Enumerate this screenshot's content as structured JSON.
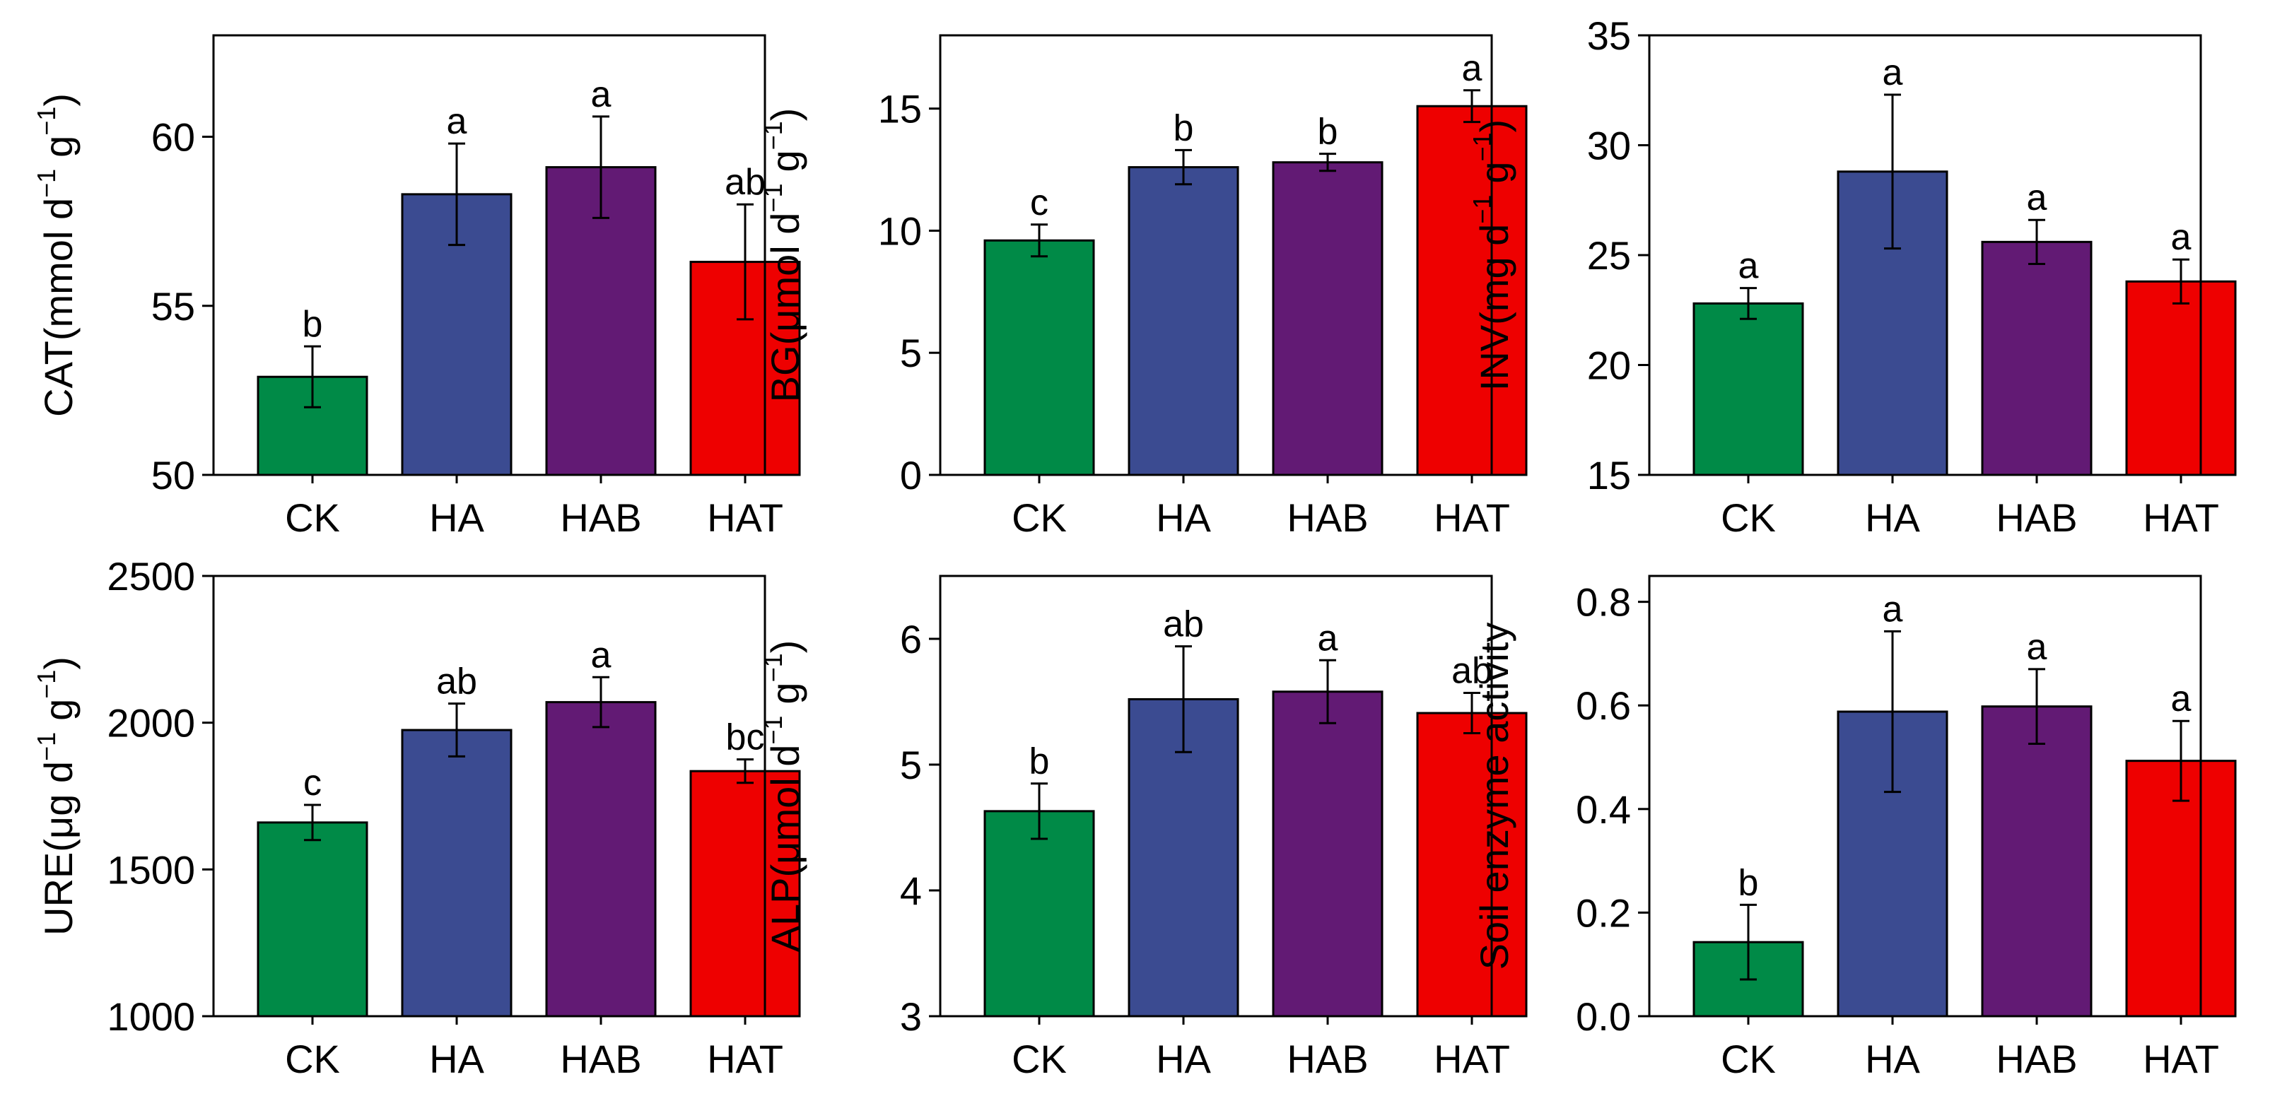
{
  "categories": [
    "CK",
    "HA",
    "HAB",
    "HAT"
  ],
  "colors": {
    "CK": "#008a47",
    "HA": "#3b4b91",
    "HAB": "#621a74",
    "HAT": "#ee0000",
    "axis": "#000000",
    "error_bar": "#000000"
  },
  "chart_data": [
    {
      "type": "bar",
      "ylabel_main": "CAT(mmol d",
      "ylabel_unit": "g",
      "ylabel_exp": "−1",
      "ylim": [
        50,
        63
      ],
      "yticks": [
        50,
        55,
        60
      ],
      "categories": [
        "CK",
        "HA",
        "HAB",
        "HAT"
      ],
      "values": [
        52.9,
        58.3,
        59.1,
        56.3
      ],
      "errors": [
        0.9,
        1.5,
        1.5,
        1.7
      ],
      "significance": [
        "b",
        "a",
        "a",
        "ab"
      ]
    },
    {
      "type": "bar",
      "ylabel_main": "BG(μmol d",
      "ylabel_unit": "g",
      "ylabel_exp": "−1",
      "ylim": [
        0,
        18
      ],
      "yticks": [
        0,
        5,
        10,
        15
      ],
      "categories": [
        "CK",
        "HA",
        "HAB",
        "HAT"
      ],
      "values": [
        9.6,
        12.6,
        12.8,
        15.1
      ],
      "errors": [
        0.65,
        0.7,
        0.35,
        0.65
      ],
      "significance": [
        "c",
        "b",
        "b",
        "a"
      ]
    },
    {
      "type": "bar",
      "ylabel_main": "INV(mg d",
      "ylabel_unit": "g",
      "ylabel_exp": "−1",
      "ylim": [
        15,
        35
      ],
      "yticks": [
        15,
        20,
        25,
        30,
        35
      ],
      "categories": [
        "CK",
        "HA",
        "HAB",
        "HAT"
      ],
      "values": [
        22.8,
        28.8,
        25.6,
        23.8
      ],
      "errors": [
        0.7,
        3.5,
        1.0,
        1.0
      ],
      "significance": [
        "a",
        "a",
        "a",
        "a"
      ]
    },
    {
      "type": "bar",
      "ylabel_main": "URE(μg d",
      "ylabel_unit": "g",
      "ylabel_exp": "−1",
      "ylim": [
        1000,
        2500
      ],
      "yticks": [
        1000,
        1500,
        2000,
        2500
      ],
      "categories": [
        "CK",
        "HA",
        "HAB",
        "HAT"
      ],
      "values": [
        1660,
        1975,
        2070,
        1835
      ],
      "errors": [
        60,
        90,
        85,
        40
      ],
      "significance": [
        "c",
        "ab",
        "a",
        "bc"
      ]
    },
    {
      "type": "bar",
      "ylabel_main": "ALP(μmol d",
      "ylabel_unit": "g",
      "ylabel_exp": "−1",
      "ylim": [
        3,
        6.5
      ],
      "yticks": [
        3,
        4,
        5,
        6
      ],
      "categories": [
        "CK",
        "HA",
        "HAB",
        "HAT"
      ],
      "values": [
        4.63,
        5.52,
        5.58,
        5.41
      ],
      "errors": [
        0.22,
        0.42,
        0.25,
        0.16
      ],
      "significance": [
        "b",
        "ab",
        "a",
        "ab"
      ]
    },
    {
      "type": "bar",
      "ylabel_main": "Soil enzyme activity",
      "ylabel_unit": "",
      "ylabel_exp": "",
      "ylim": [
        0,
        0.85
      ],
      "yticks": [
        0.0,
        0.2,
        0.4,
        0.6,
        0.8
      ],
      "tick_decimals": 1,
      "categories": [
        "CK",
        "HA",
        "HAB",
        "HAT"
      ],
      "values": [
        0.143,
        0.588,
        0.598,
        0.493
      ],
      "errors": [
        0.072,
        0.155,
        0.072,
        0.077
      ],
      "significance": [
        "b",
        "a",
        "a",
        "a"
      ]
    }
  ]
}
